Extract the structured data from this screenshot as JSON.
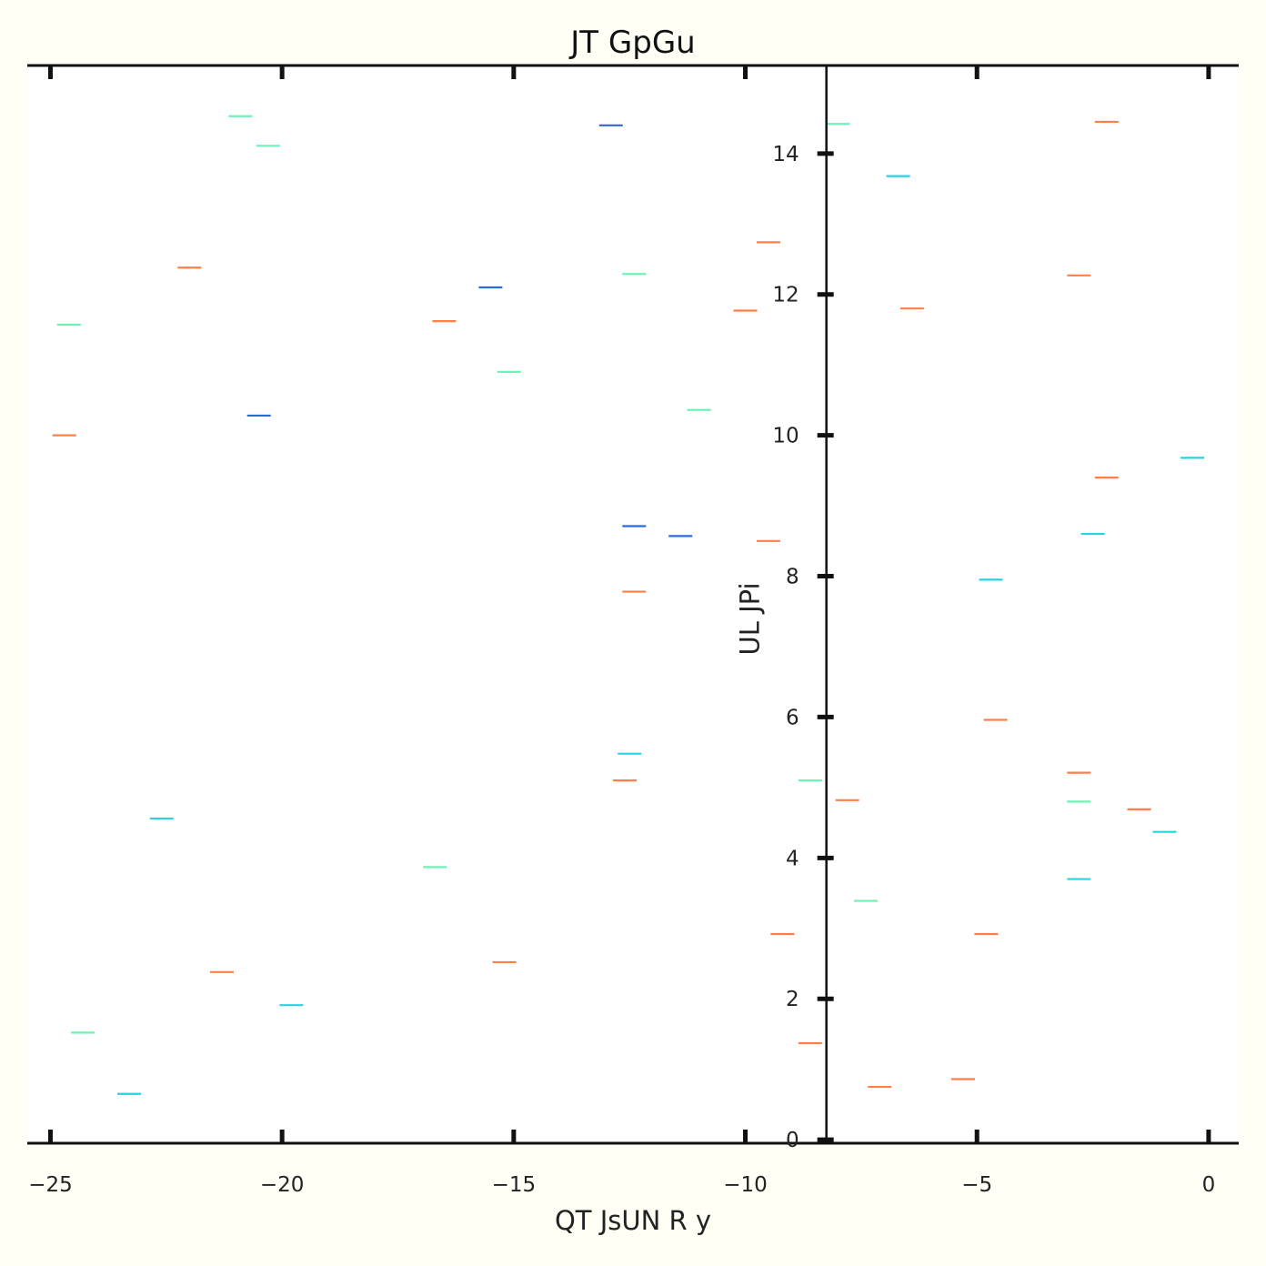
{
  "chart_data": {
    "type": "scatter",
    "title": "JT GpGu",
    "xlabel": "QT JsUN R y",
    "ylabel": "UL JPi",
    "xlim": [
      -25.5,
      0.65
    ],
    "ylim": [
      -0.05,
      15.25
    ],
    "x_ticks": [
      -25,
      -20,
      -15,
      -10,
      -5,
      0
    ],
    "x_tick_labels": [
      "−25",
      "−20",
      "−15",
      "−10",
      "−5",
      "0"
    ],
    "y_ticks": [
      0,
      2,
      4,
      6,
      8,
      10,
      12,
      14
    ],
    "y_tick_labels": [
      "0",
      "2",
      "4",
      "6",
      "8",
      "10",
      "12",
      "14"
    ],
    "y_axis_at_x": -8.25,
    "grid": false,
    "marker": "horizontal-dash",
    "colors": {
      "orange": "#ff7f47",
      "mint": "#6cf3b6",
      "cyan": "#26d3e3",
      "blue": "#2a6ae0",
      "background": "#fffff6",
      "axes": "#111111"
    },
    "series": [
      {
        "color": "#ff7f47",
        "points": [
          {
            "x": -24.7,
            "y": 10.0
          },
          {
            "x": -22.0,
            "y": 12.38
          },
          {
            "x": -21.3,
            "y": 2.38
          },
          {
            "x": -16.5,
            "y": 11.62
          },
          {
            "x": -15.2,
            "y": 2.52
          },
          {
            "x": -12.6,
            "y": 5.1
          },
          {
            "x": -12.4,
            "y": 7.78
          },
          {
            "x": -9.5,
            "y": 12.74
          },
          {
            "x": -10.0,
            "y": 11.77
          },
          {
            "x": -9.5,
            "y": 8.5
          },
          {
            "x": -9.2,
            "y": 2.92
          },
          {
            "x": -8.6,
            "y": 1.37
          },
          {
            "x": -7.8,
            "y": 4.82
          },
          {
            "x": -7.1,
            "y": 0.75
          },
          {
            "x": -6.4,
            "y": 11.8
          },
          {
            "x": -5.3,
            "y": 0.86
          },
          {
            "x": -4.8,
            "y": 2.92
          },
          {
            "x": -4.6,
            "y": 5.96
          },
          {
            "x": -2.8,
            "y": 12.27
          },
          {
            "x": -2.8,
            "y": 5.21
          },
          {
            "x": -2.2,
            "y": 14.45
          },
          {
            "x": -2.2,
            "y": 9.4
          },
          {
            "x": -1.5,
            "y": 4.69
          }
        ]
      },
      {
        "color": "#6cf3b6",
        "points": [
          {
            "x": -24.6,
            "y": 11.57
          },
          {
            "x": -24.3,
            "y": 1.52
          },
          {
            "x": -20.9,
            "y": 14.53
          },
          {
            "x": -20.3,
            "y": 14.11
          },
          {
            "x": -16.7,
            "y": 3.87
          },
          {
            "x": -15.1,
            "y": 10.9
          },
          {
            "x": -12.4,
            "y": 12.29
          },
          {
            "x": -11.0,
            "y": 10.36
          },
          {
            "x": -8.6,
            "y": 5.1
          },
          {
            "x": -8.0,
            "y": 14.42
          },
          {
            "x": -7.4,
            "y": 3.39
          },
          {
            "x": -2.8,
            "y": 4.8
          }
        ]
      },
      {
        "color": "#26d3e3",
        "points": [
          {
            "x": -23.3,
            "y": 0.65
          },
          {
            "x": -22.6,
            "y": 4.56
          },
          {
            "x": -19.8,
            "y": 1.91
          },
          {
            "x": -12.5,
            "y": 5.48
          },
          {
            "x": -6.7,
            "y": 13.68
          },
          {
            "x": -4.7,
            "y": 7.95
          },
          {
            "x": -2.8,
            "y": 3.7
          },
          {
            "x": -2.5,
            "y": 8.6
          },
          {
            "x": -0.95,
            "y": 4.37
          },
          {
            "x": -0.35,
            "y": 9.68
          }
        ]
      },
      {
        "color": "#2a6ae0",
        "points": [
          {
            "x": -20.5,
            "y": 10.28
          },
          {
            "x": -15.5,
            "y": 12.1
          },
          {
            "x": -12.9,
            "y": 14.4
          },
          {
            "x": -12.4,
            "y": 8.71
          },
          {
            "x": -11.4,
            "y": 8.57
          }
        ]
      }
    ]
  }
}
